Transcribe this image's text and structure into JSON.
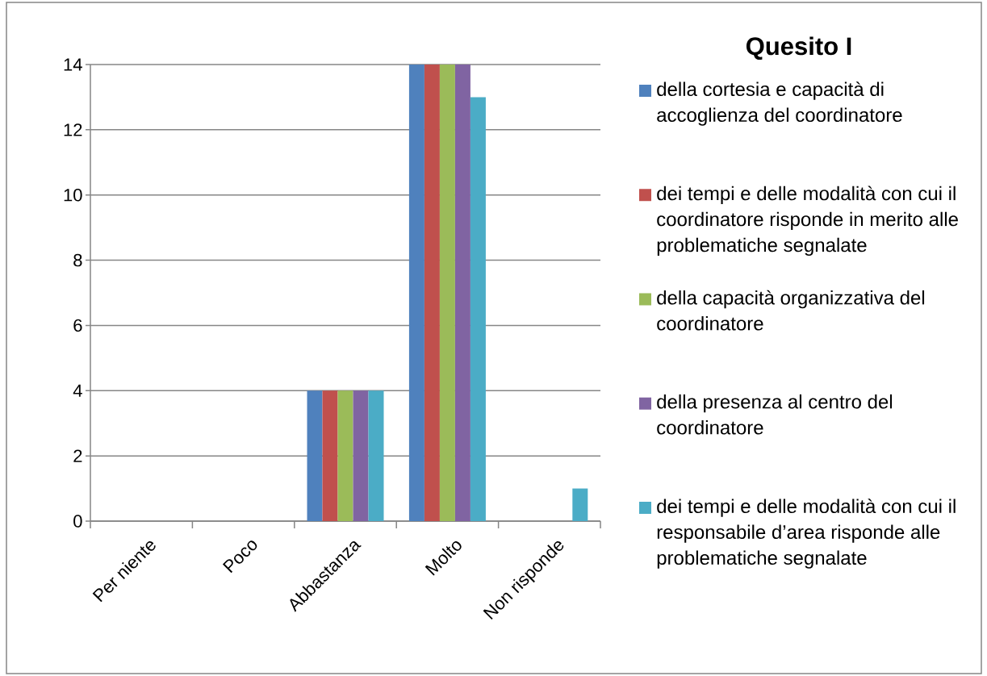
{
  "chart_data": {
    "type": "bar",
    "legend_title": "Quesito I",
    "legend": "right",
    "grid": "y",
    "categories": [
      "Per niente",
      "Poco",
      "Abbastanza",
      "Molto",
      "Non risponde"
    ],
    "series": [
      {
        "name": "della cortesia e capacità di accoglienza del coordinatore",
        "color": "#4f81bd",
        "values": [
          0,
          0,
          4,
          14,
          0
        ]
      },
      {
        "name": "dei tempi e delle modalità con cui il coordinatore risponde in merito alle problematiche segnalate",
        "color": "#c0504d",
        "values": [
          0,
          0,
          4,
          14,
          0
        ]
      },
      {
        "name": "della capacità organizzativa del coordinatore",
        "color": "#9bbb59",
        "values": [
          0,
          0,
          4,
          14,
          0
        ]
      },
      {
        "name": "della presenza al centro del coordinatore",
        "color": "#8064a2",
        "values": [
          0,
          0,
          4,
          14,
          0
        ]
      },
      {
        "name": "dei tempi e delle modalità con cui il responsabile d’area risponde alle problematiche segnalate",
        "color": "#4bacc6",
        "values": [
          0,
          0,
          4,
          13,
          1
        ]
      }
    ],
    "ylim": [
      0,
      14
    ],
    "yticks": [
      0,
      2,
      4,
      6,
      8,
      10,
      12,
      14
    ]
  }
}
